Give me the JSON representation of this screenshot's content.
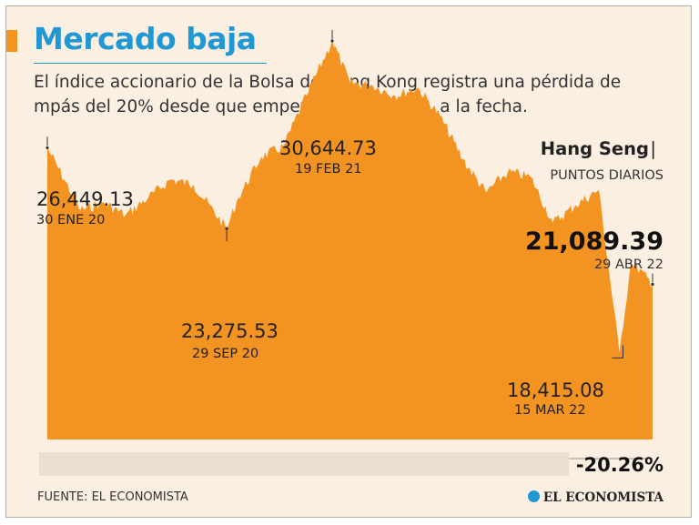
{
  "header": {
    "title": "Mercado baja",
    "subtitle": "El índice accionario de la Bolsa de Hong Kong registra una pérdida de mpás del 20% desde que empezó la pandemia, a la fecha."
  },
  "index_label": {
    "name": "Hang Seng",
    "separator": "|",
    "unit": "PUNTOS DIARIOS"
  },
  "annotations": {
    "start": {
      "value": "26,449.13",
      "date": "30 ENE 20"
    },
    "low_2020": {
      "value": "23,275.53",
      "date": "29 SEP 20"
    },
    "peak": {
      "value": "30,644.73",
      "date": "19 FEB 21"
    },
    "low_2022": {
      "value": "18,415.08",
      "date": "15 MAR 22"
    },
    "last": {
      "value": "21,089.39",
      "date": "29 ABR 22"
    }
  },
  "change": "-20.26%",
  "footer": {
    "source": "FUENTE: EL ECONOMISTA",
    "logo": "EL ECONOMISTA"
  },
  "colors": {
    "area": "#f39321",
    "title": "#1f98d3",
    "background": "#fbefe2"
  },
  "chart_data": {
    "type": "area",
    "title": "Hang Seng",
    "ylabel": "PUNTOS DIARIOS",
    "x": [
      "2020-01-30",
      "2020-03-15",
      "2020-04-15",
      "2020-05-15",
      "2020-06-15",
      "2020-07-15",
      "2020-08-15",
      "2020-09-29",
      "2020-10-15",
      "2020-11-15",
      "2020-12-15",
      "2021-01-15",
      "2021-02-19",
      "2021-03-15",
      "2021-04-15",
      "2021-05-15",
      "2021-06-15",
      "2021-07-15",
      "2021-08-15",
      "2021-09-15",
      "2021-10-15",
      "2021-11-15",
      "2021-12-15",
      "2022-01-15",
      "2022-02-15",
      "2022-03-15",
      "2022-03-31",
      "2022-04-29"
    ],
    "values": [
      26449.13,
      24000,
      24300,
      23800,
      24500,
      25200,
      25000,
      23275.53,
      24500,
      26100,
      26500,
      28500,
      30644.73,
      29000,
      28900,
      28500,
      28800,
      27700,
      26000,
      24700,
      25500,
      25300,
      23500,
      24200,
      24800,
      18415.08,
      21996.85,
      21089.39
    ],
    "ylim": [
      15000,
      32000
    ],
    "grid": false
  }
}
